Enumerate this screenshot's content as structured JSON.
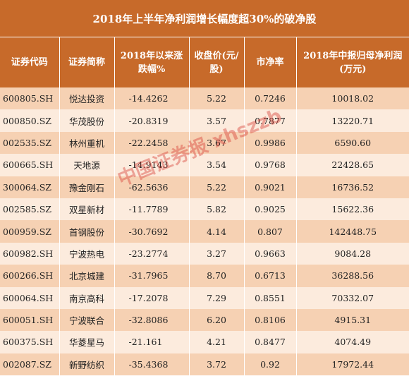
{
  "title": "2018年上半年净利润增长幅度超30%的破净股",
  "table": {
    "headers": [
      "证券代码",
      "证券简称",
      "2018年以来涨跌幅%",
      "收盘价(元/股)",
      "市净率",
      "2018年中报归母净利润(万元)"
    ],
    "rows": [
      [
        "600805.SH",
        "悦达投资",
        "-14.4262",
        "5.22",
        "0.7246",
        "10018.02"
      ],
      [
        "000850.SZ",
        "华茂股份",
        "-20.8319",
        "3.57",
        "0.7877",
        "13220.71"
      ],
      [
        "002535.SZ",
        "林州重机",
        "-22.2458",
        "3.67",
        "0.9986",
        "6590.60"
      ],
      [
        "600665.SH",
        "天地源",
        "-14.9143",
        "3.54",
        "0.9768",
        "22428.65"
      ],
      [
        "300064.SZ",
        "豫金刚石",
        "-62.5636",
        "5.22",
        "0.9021",
        "16736.52"
      ],
      [
        "002585.SZ",
        "双星新材",
        "-11.7789",
        "5.82",
        "0.9025",
        "15622.36"
      ],
      [
        "000959.SZ",
        "首钢股份",
        "-30.7692",
        "4.14",
        "0.807",
        "142448.75"
      ],
      [
        "600982.SH",
        "宁波热电",
        "-23.2774",
        "3.27",
        "0.9663",
        "9084.28"
      ],
      [
        "600266.SH",
        "北京城建",
        "-31.7965",
        "8.70",
        "0.6713",
        "36288.56"
      ],
      [
        "600064.SH",
        "南京高科",
        "-17.2078",
        "7.29",
        "0.8551",
        "70332.07"
      ],
      [
        "600051.SH",
        "宁波联合",
        "-32.8086",
        "6.20",
        "0.8106",
        "4915.31"
      ],
      [
        "600375.SH",
        "华菱星马",
        "-21.161",
        "4.21",
        "0.8477",
        "4074.49"
      ],
      [
        "002087.SZ",
        "新野纺织",
        "-35.4368",
        "3.72",
        "0.92",
        "17972.44"
      ]
    ]
  },
  "watermark": "中国证券报 xhszzb",
  "colors": {
    "header": "#c76a2a",
    "row_dark": "#f6d1b3",
    "row_light": "#fcebdd",
    "watermark": "#d63c32"
  }
}
